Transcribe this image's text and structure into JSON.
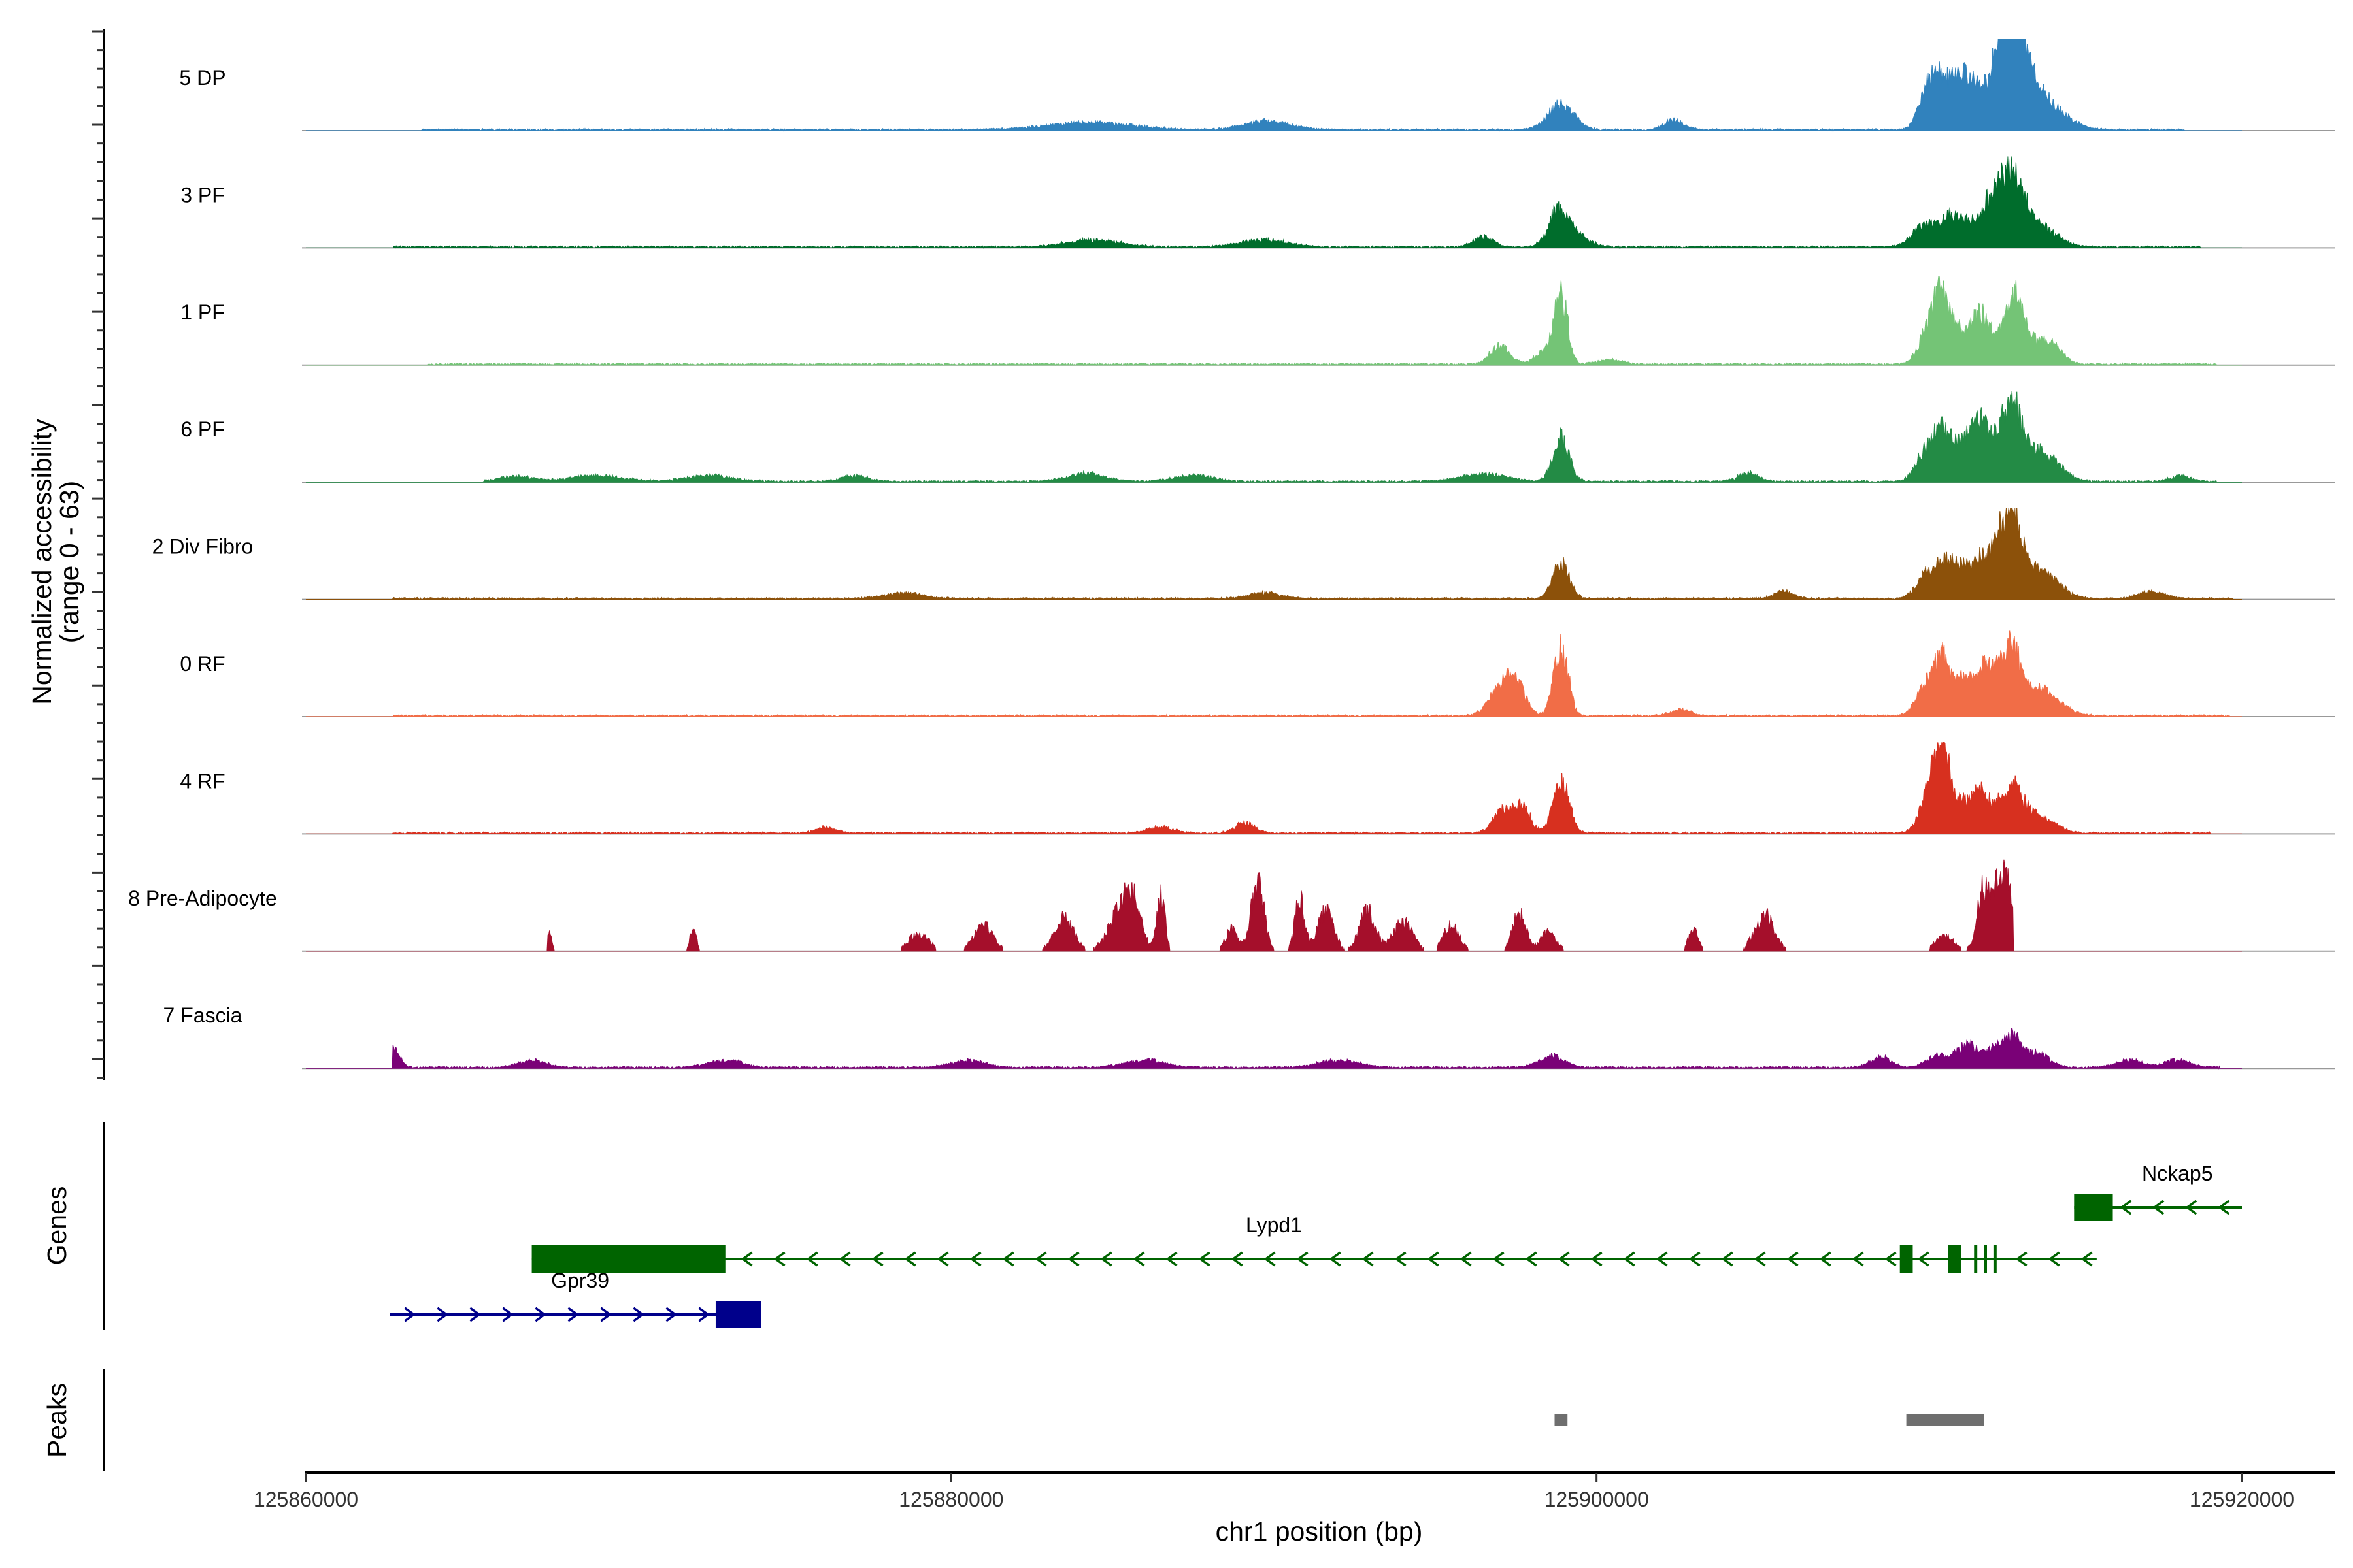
{
  "chart_data": {
    "type": "coverage_track",
    "title": "",
    "ylabel": "Normalized accessibility\n(range 0 - 63)",
    "xlabel": "chr1 position (bp)",
    "xlim": [
      125860000,
      125920000
    ],
    "x_ticks": [
      125860000,
      125880000,
      125900000,
      125920000
    ],
    "y_range": [
      0,
      63
    ],
    "tracks": [
      {
        "name": "5 DP",
        "color": "#3182BD",
        "extent": [
          125863600,
          125918200
        ],
        "features": [
          [
            125884300,
            0.1,
            1300
          ],
          [
            125889800,
            0.12,
            700
          ],
          [
            125898900,
            0.35,
            400
          ],
          [
            125902400,
            0.13,
            300
          ],
          [
            125910300,
            0.5,
            300
          ],
          [
            125910700,
            0.45,
            300
          ],
          [
            125911300,
            0.7,
            300
          ],
          [
            125911900,
            0.45,
            300
          ],
          [
            125912400,
            0.62,
            250
          ],
          [
            125912700,
            0.92,
            250
          ],
          [
            125913100,
            0.88,
            250
          ],
          [
            125913400,
            0.45,
            400
          ],
          [
            125914000,
            0.3,
            600
          ]
        ]
      },
      {
        "name": "3 PF",
        "color": "#006D2C",
        "extent": [
          125862700,
          125918700
        ],
        "features": [
          [
            125884400,
            0.1,
            800
          ],
          [
            125889700,
            0.1,
            700
          ],
          [
            125896500,
            0.14,
            300
          ],
          [
            125898800,
            0.45,
            300
          ],
          [
            125899300,
            0.18,
            400
          ],
          [
            125910200,
            0.3,
            400
          ],
          [
            125911000,
            0.38,
            300
          ],
          [
            125911600,
            0.3,
            300
          ],
          [
            125912200,
            0.5,
            250
          ],
          [
            125912700,
            0.95,
            300
          ],
          [
            125913200,
            0.4,
            300
          ],
          [
            125913800,
            0.25,
            500
          ]
        ]
      },
      {
        "name": "1 PF",
        "color": "#74C476",
        "extent": [
          125863800,
          125919200
        ],
        "features": [
          [
            125897000,
            0.25,
            300
          ],
          [
            125898400,
            0.18,
            300
          ],
          [
            125898900,
            0.95,
            200
          ],
          [
            125900400,
            0.06,
            400
          ],
          [
            125910300,
            0.45,
            300
          ],
          [
            125910700,
            0.8,
            250
          ],
          [
            125911200,
            0.4,
            300
          ],
          [
            125911900,
            0.65,
            300
          ],
          [
            125912600,
            0.35,
            250
          ],
          [
            125913000,
            0.75,
            250
          ],
          [
            125913600,
            0.3,
            400
          ],
          [
            125914200,
            0.18,
            300
          ]
        ]
      },
      {
        "name": "6 PF",
        "color": "#238B45",
        "extent": [
          125865500,
          125919200
        ],
        "features": [
          [
            125866500,
            0.07,
            500
          ],
          [
            125869000,
            0.08,
            800
          ],
          [
            125872500,
            0.08,
            700
          ],
          [
            125877000,
            0.08,
            400
          ],
          [
            125884200,
            0.1,
            600
          ],
          [
            125887500,
            0.08,
            600
          ],
          [
            125896500,
            0.1,
            700
          ],
          [
            125898900,
            0.6,
            250
          ],
          [
            125904700,
            0.12,
            300
          ],
          [
            125910200,
            0.4,
            300
          ],
          [
            125910700,
            0.6,
            250
          ],
          [
            125911300,
            0.45,
            300
          ],
          [
            125911900,
            0.75,
            300
          ],
          [
            125912500,
            0.45,
            250
          ],
          [
            125912900,
            0.92,
            250
          ],
          [
            125913500,
            0.4,
            400
          ],
          [
            125914200,
            0.2,
            400
          ],
          [
            125918100,
            0.08,
            300
          ]
        ]
      },
      {
        "name": "2 Div Fibro",
        "color": "#8C510A",
        "extent": [
          125862700,
          125919700
        ],
        "features": [
          [
            125878500,
            0.08,
            600
          ],
          [
            125889700,
            0.08,
            500
          ],
          [
            125898900,
            0.5,
            250
          ],
          [
            125905800,
            0.1,
            300
          ],
          [
            125910200,
            0.3,
            300
          ],
          [
            125910800,
            0.45,
            300
          ],
          [
            125911400,
            0.38,
            300
          ],
          [
            125912000,
            0.52,
            250
          ],
          [
            125912500,
            0.62,
            250
          ],
          [
            125912900,
            1.0,
            250
          ],
          [
            125913500,
            0.4,
            400
          ],
          [
            125914200,
            0.18,
            400
          ],
          [
            125917200,
            0.1,
            400
          ]
        ]
      },
      {
        "name": "0 RF",
        "color": "#F16D47",
        "extent": [
          125862700,
          125919600
        ],
        "features": [
          [
            125897000,
            0.35,
            350
          ],
          [
            125897500,
            0.4,
            300
          ],
          [
            125898900,
            0.95,
            220
          ],
          [
            125902600,
            0.08,
            300
          ],
          [
            125910200,
            0.4,
            300
          ],
          [
            125910700,
            0.7,
            250
          ],
          [
            125911300,
            0.45,
            300
          ],
          [
            125912000,
            0.6,
            300
          ],
          [
            125912500,
            0.4,
            250
          ],
          [
            125912900,
            0.8,
            250
          ],
          [
            125913600,
            0.35,
            400
          ],
          [
            125914300,
            0.15,
            400
          ]
        ]
      },
      {
        "name": "4 RF",
        "color": "#D7301F",
        "extent": [
          125862700,
          125919000
        ],
        "features": [
          [
            125876100,
            0.08,
            300
          ],
          [
            125886500,
            0.08,
            400
          ],
          [
            125889100,
            0.14,
            300
          ],
          [
            125897100,
            0.3,
            300
          ],
          [
            125897700,
            0.35,
            250
          ],
          [
            125898900,
            0.7,
            250
          ],
          [
            125910300,
            0.5,
            300
          ],
          [
            125910700,
            1.0,
            250
          ],
          [
            125911300,
            0.4,
            300
          ],
          [
            125911900,
            0.5,
            250
          ],
          [
            125912500,
            0.4,
            250
          ],
          [
            125913000,
            0.55,
            250
          ],
          [
            125913600,
            0.25,
            300
          ],
          [
            125914200,
            0.1,
            300
          ]
        ]
      },
      {
        "name": "8 Pre-Adipocyte",
        "color": "#A50F2B",
        "extent": [
          125867500,
          125912900
        ],
        "features": [
          [
            125867500,
            0.3,
            100
          ],
          [
            125872000,
            0.3,
            100
          ],
          [
            125879000,
            0.25,
            300
          ],
          [
            125881000,
            0.35,
            300
          ],
          [
            125883500,
            0.45,
            300
          ],
          [
            125885300,
            0.55,
            400
          ],
          [
            125885600,
            0.45,
            250
          ],
          [
            125886500,
            0.8,
            120
          ],
          [
            125888700,
            0.3,
            200
          ],
          [
            125889500,
            0.95,
            200
          ],
          [
            125890800,
            0.7,
            150
          ],
          [
            125891600,
            0.55,
            250
          ],
          [
            125892900,
            0.55,
            250
          ],
          [
            125894000,
            0.4,
            300
          ],
          [
            125895500,
            0.35,
            250
          ],
          [
            125897600,
            0.55,
            200
          ],
          [
            125898500,
            0.25,
            250
          ],
          [
            125903000,
            0.3,
            150
          ],
          [
            125905200,
            0.5,
            300
          ],
          [
            125910800,
            0.2,
            300
          ],
          [
            125912000,
            0.85,
            200
          ],
          [
            125912500,
            0.95,
            200
          ],
          [
            125912800,
            0.65,
            150
          ]
        ]
      },
      {
        "name": "7 Fascia",
        "color": "#7A0177",
        "extent": [
          125862700,
          125919300
        ],
        "features": [
          [
            125862700,
            0.25,
            200
          ],
          [
            125867000,
            0.1,
            400
          ],
          [
            125873000,
            0.1,
            500
          ],
          [
            125880500,
            0.1,
            500
          ],
          [
            125886000,
            0.1,
            600
          ],
          [
            125892000,
            0.1,
            600
          ],
          [
            125898600,
            0.15,
            400
          ],
          [
            125908800,
            0.15,
            300
          ],
          [
            125910500,
            0.15,
            300
          ],
          [
            125911500,
            0.3,
            400
          ],
          [
            125912400,
            0.25,
            300
          ],
          [
            125912900,
            0.35,
            250
          ],
          [
            125913600,
            0.2,
            400
          ],
          [
            125916500,
            0.1,
            400
          ],
          [
            125918000,
            0.1,
            400
          ]
        ]
      }
    ],
    "genes": [
      {
        "name": "Nckap5",
        "strand": "-",
        "color": "#006400",
        "start": 125914800,
        "end": 125920000,
        "exons": [
          [
            125914800,
            125916000
          ]
        ],
        "row": 1,
        "label_pos": 125918000
      },
      {
        "name": "Lypd1",
        "strand": "-",
        "color": "#006400",
        "start": 125867000,
        "end": 125915500,
        "exons": [
          [
            125867000,
            125873000
          ],
          [
            125909400,
            125909800
          ],
          [
            125910900,
            125911300
          ],
          [
            125911700,
            125911800
          ],
          [
            125912000,
            125912100
          ],
          [
            125912300,
            125912400
          ]
        ],
        "row": 2,
        "label_pos": 125890000
      },
      {
        "name": "Gpr39",
        "strand": "+",
        "color": "#00008B",
        "start": 125862600,
        "end": 125874100,
        "exons": [
          [
            125872700,
            125874100
          ]
        ],
        "row": 3,
        "label_pos": 125868500
      }
    ],
    "peaks": [
      [
        125898700,
        125899100
      ],
      [
        125909600,
        125912000
      ]
    ],
    "panel_labels": {
      "genes": "Genes",
      "peaks": "Peaks"
    }
  }
}
